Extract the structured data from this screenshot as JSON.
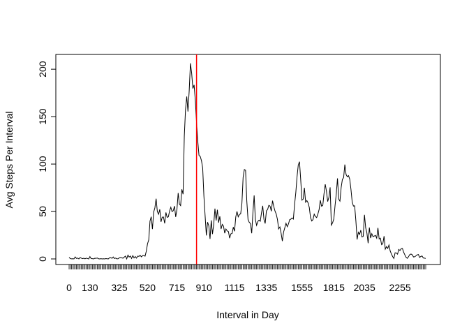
{
  "chart_data": {
    "type": "line",
    "title": "",
    "xlabel": "Interval in Day",
    "ylabel": "Avg Steps Per Interval",
    "xlim": [
      0,
      288
    ],
    "ylim": [
      0,
      206
    ],
    "x_tick_labels": [
      "0",
      "130",
      "325",
      "520",
      "715",
      "910",
      "1115",
      "1335",
      "1555",
      "1815",
      "2035",
      "2255"
    ],
    "x_tick_label_index": [
      0,
      17,
      41,
      64,
      88,
      110,
      135,
      161,
      190,
      216,
      241,
      270
    ],
    "y_ticks": [
      0,
      50,
      100,
      150,
      200
    ],
    "grid": false,
    "reference_line": {
      "x_index": 104,
      "interval": "835",
      "color": "#ff0000"
    },
    "series": [
      {
        "color": "#000000",
        "values": [
          1.7,
          0.3,
          0.1,
          0.2,
          0.1,
          2.1,
          0.5,
          0.9,
          0.0,
          1.5,
          0.8,
          0.3,
          0.7,
          0.1,
          0.8,
          0.4,
          0.0,
          2.5,
          0.4,
          0.3,
          0.0,
          0.7,
          0.6,
          1.0,
          0.2,
          0.0,
          0.3,
          0.0,
          0.2,
          0.0,
          0.4,
          0.2,
          0.0,
          1.2,
          1.3,
          0.6,
          2.1,
          0.4,
          0.9,
          0.1,
          0.2,
          1.2,
          1.5,
          1.1,
          0.8,
          1.9,
          3.0,
          0.0,
          4.0,
          2.0,
          3.0,
          0.5,
          3.5,
          1.0,
          2.5,
          0.8,
          3.0,
          2.7,
          3.7,
          2.2,
          3.5,
          3.5,
          2.9,
          8.2,
          16.0,
          20.0,
          39.8,
          44.5,
          31.5,
          49.3,
          53.8,
          63.5,
          50.0,
          47.1,
          52.2,
          39.1,
          44.0,
          44.2,
          37.5,
          49.0,
          43.8,
          44.4,
          50.5,
          54.5,
          49.9,
          50.9,
          55.7,
          44.3,
          52.3,
          69.5,
          57.8,
          56.2,
          73.4,
          68.2,
          129.4,
          157.5,
          171.2,
          155.4,
          177.3,
          206.2,
          195.9,
          179.6,
          183.4,
          167.0,
          143.5,
          124.0,
          109.1,
          108.1,
          103.7,
          95.9,
          66.2,
          45.2,
          24.8,
          38.8,
          34.9,
          21.1,
          40.6,
          26.2,
          36.4,
          53.0,
          40.5,
          51.8,
          38.2,
          44.9,
          31.5,
          36.4,
          34.5,
          27.1,
          31.6,
          29.5,
          28.9,
          21.9,
          26.5,
          26.9,
          33.6,
          29.2,
          44.3,
          50.0,
          44.4,
          46.9,
          47.5,
          58.5,
          86.0,
          94.2,
          93.4,
          60.9,
          41.6,
          38.6,
          37.3,
          27.1,
          48.9,
          66.9,
          41.5,
          35.4,
          39.5,
          40.9,
          39.7,
          48.6,
          56.0,
          41.6,
          37.4,
          50.6,
          52.2,
          56.5,
          55.6,
          50.3,
          61.4,
          55.3,
          50.5,
          47.3,
          41.7,
          31.6,
          33.7,
          27.1,
          18.8,
          28.2,
          32.8,
          37.6,
          33.9,
          36.9,
          41.4,
          42.0,
          43.2,
          42.0,
          57.6,
          70.0,
          86.8,
          99.0,
          102.5,
          83.3,
          62.0,
          63.0,
          75.0,
          59.8,
          61.6,
          59.1,
          54.2,
          43.7,
          40.0,
          41.5,
          47.2,
          44.7,
          43.6,
          47.3,
          52.0,
          61.8,
          55.6,
          56.3,
          68.7,
          78.7,
          71.4,
          60.5,
          64.9,
          75.5,
          35.6,
          38.1,
          42.0,
          56.1,
          68.5,
          84.9,
          63.0,
          60.9,
          75.4,
          83.8,
          85.7,
          99.5,
          89.0,
          86.6,
          87.8,
          84.1,
          73.2,
          60.0,
          55.7,
          56.0,
          40.2,
          20.5,
          28.1,
          25.8,
          30.3,
          23.2,
          23.8,
          46.5,
          32.8,
          27.4,
          16.6,
          33.1,
          22.0,
          26.6,
          23.4,
          24.1,
          24.8,
          21.9,
          32.7,
          21.0,
          21.8,
          15.0,
          16.1,
          24.0,
          10.3,
          13.0,
          11.0,
          14.7,
          8.4,
          5.2,
          2.5,
          0.5,
          6.5,
          6.3,
          5.0,
          10.0,
          8.9,
          10.8,
          11.0,
          7.0,
          4.2,
          1.6,
          0.6,
          2.5,
          4.6,
          5.2,
          4.4,
          2.1,
          2.3,
          3.2,
          4.3,
          4.7,
          1.6,
          2.6,
          3.1,
          1.0,
          0.8,
          0.5
        ]
      }
    ]
  }
}
